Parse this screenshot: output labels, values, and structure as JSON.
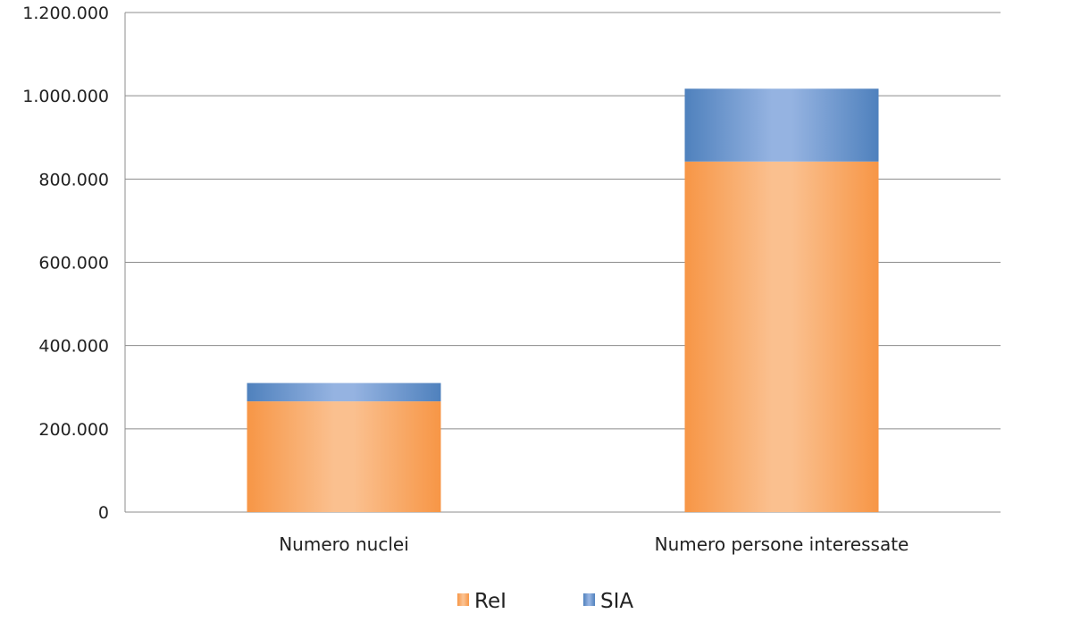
{
  "chart_data": {
    "type": "bar",
    "stacked": true,
    "categories": [
      "Numero nuclei",
      "Numero persone interessate"
    ],
    "series": [
      {
        "name": "ReI",
        "values": [
          266000,
          842000
        ],
        "color": "#f79646"
      },
      {
        "name": "SIA",
        "values": [
          44000,
          175000
        ],
        "color": "#4f81bd"
      }
    ],
    "ylim": [
      0,
      1200000
    ],
    "yticks": [
      0,
      200000,
      400000,
      600000,
      800000,
      1000000,
      1200000
    ],
    "ytick_labels": [
      "0",
      "200.000",
      "400.000",
      "600.000",
      "800.000",
      "1.000.000",
      "1.200.000"
    ],
    "grid": true,
    "legend": "bottom-center"
  }
}
